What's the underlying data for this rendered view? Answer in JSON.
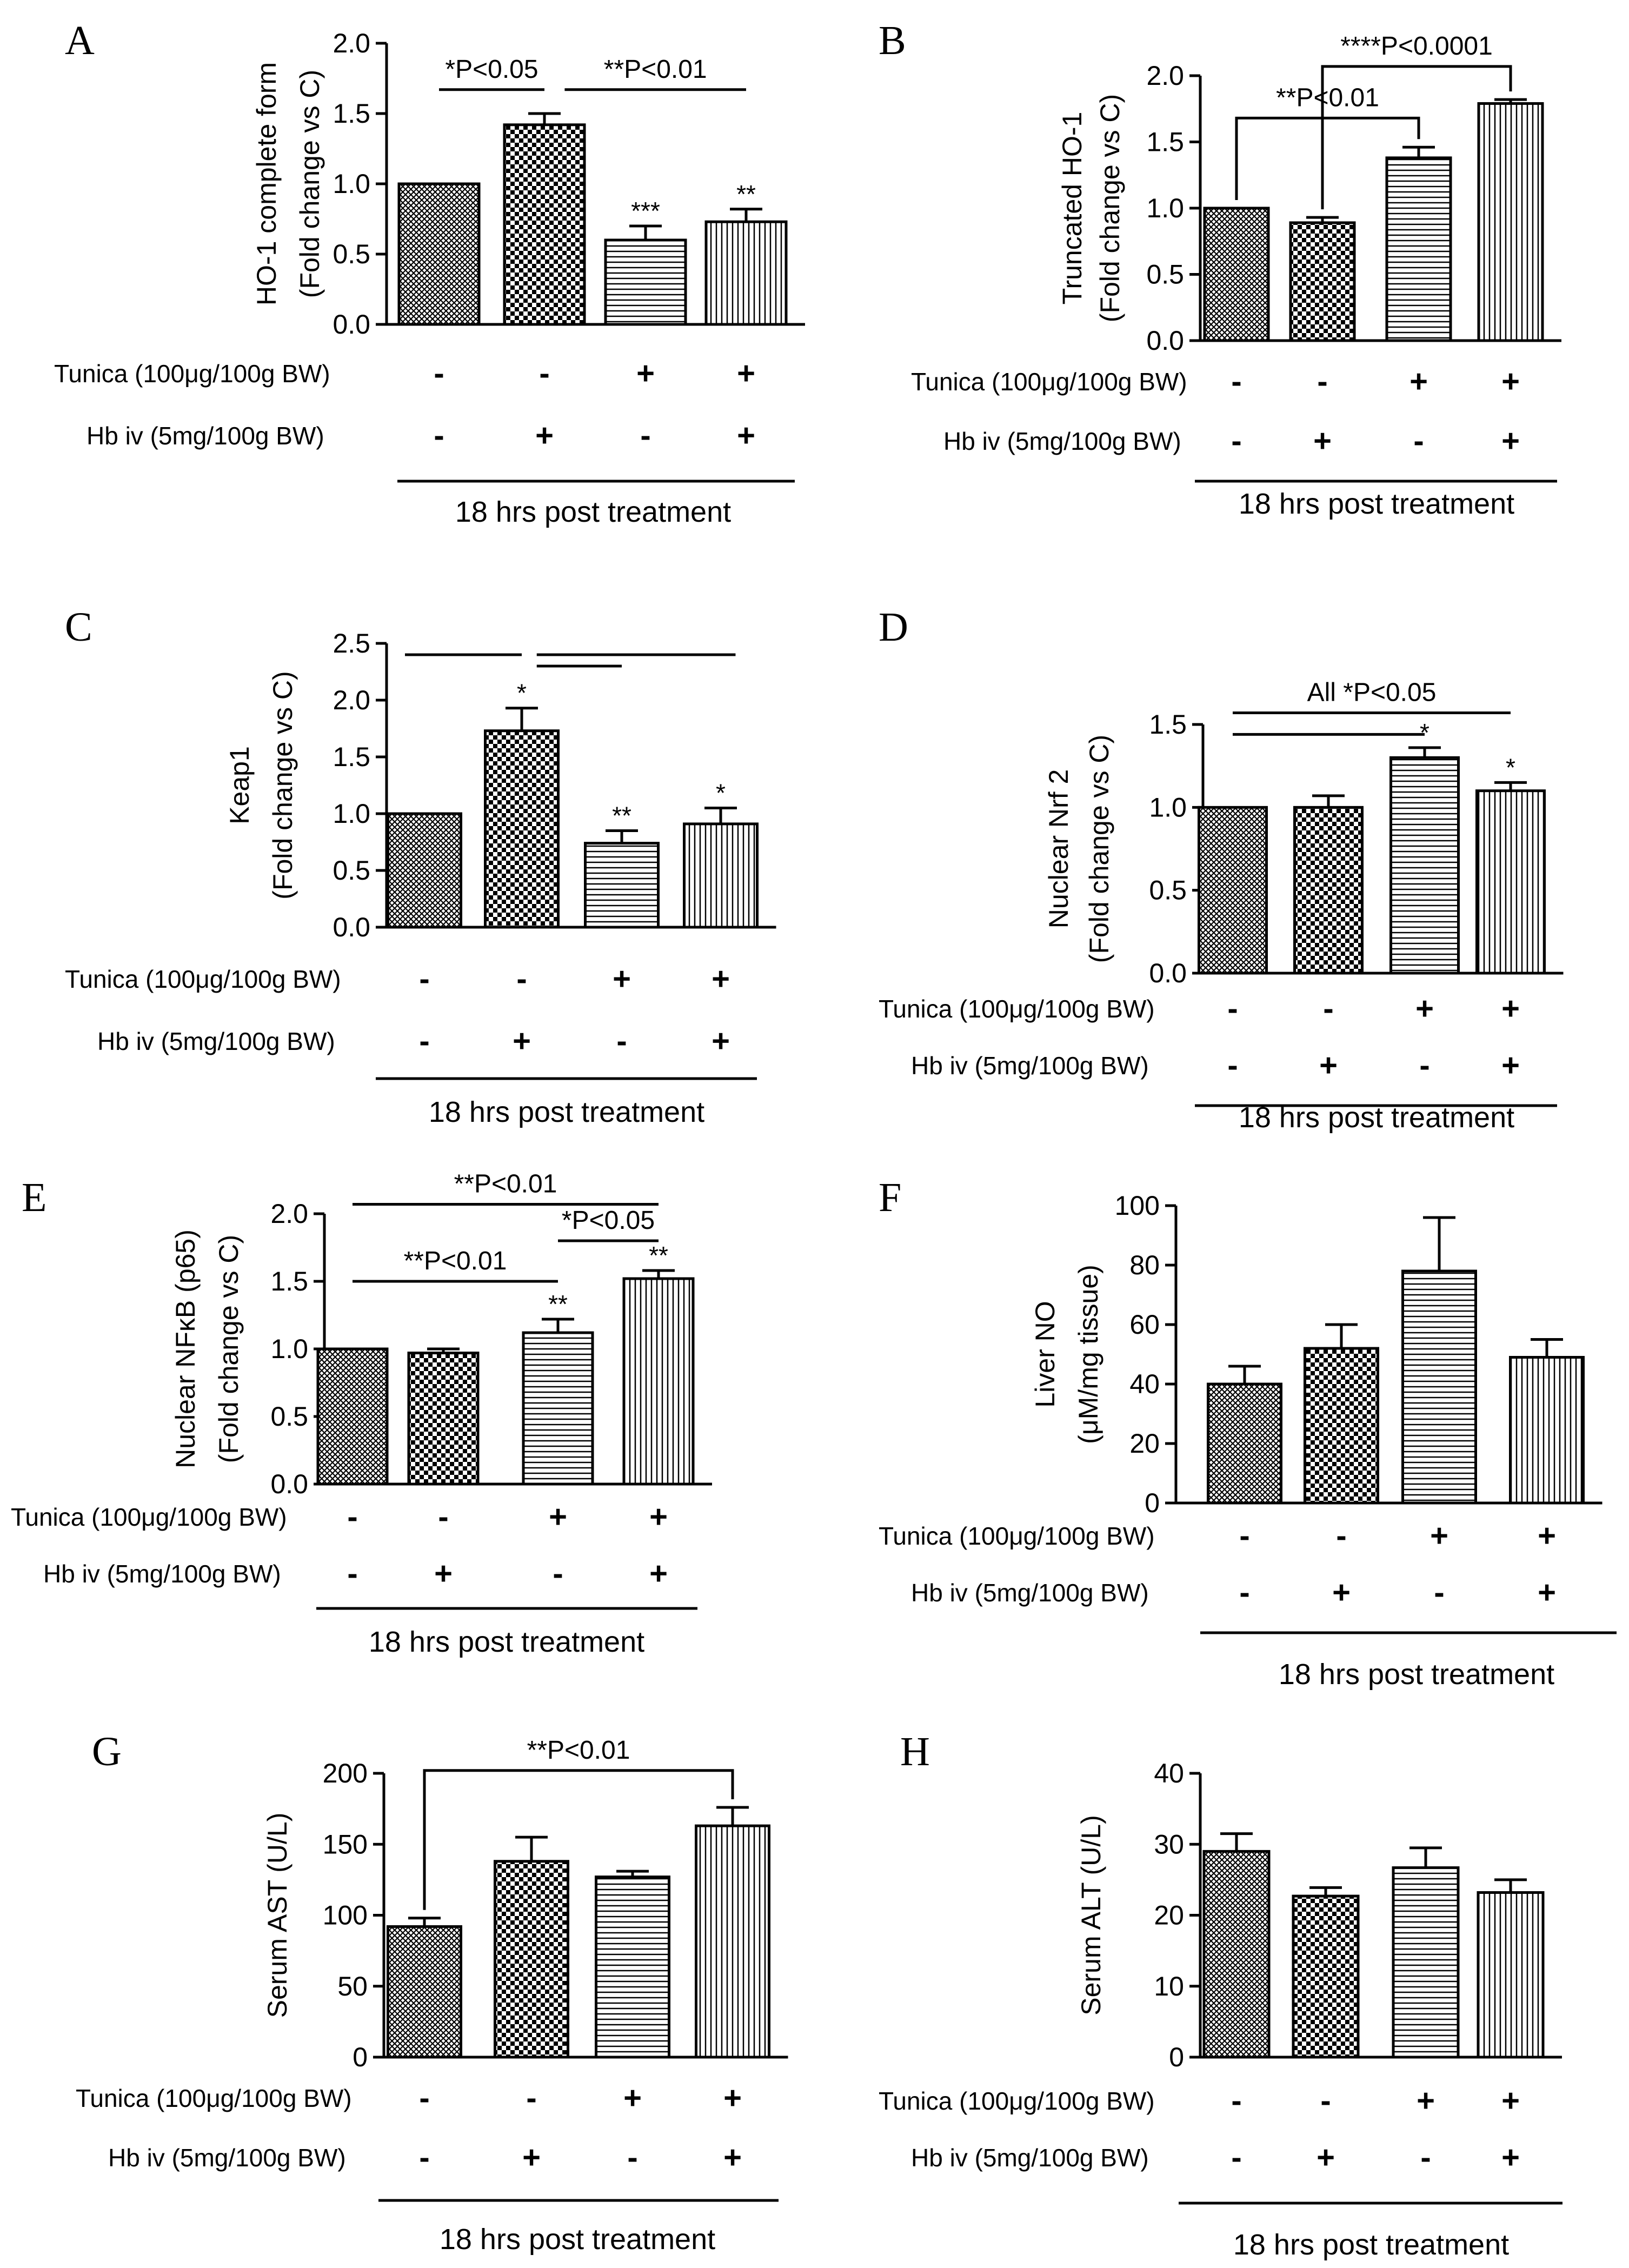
{
  "row_labels": {
    "tunica": "Tunica (100μg/100g BW)",
    "hb": "Hb iv (5mg/100g BW)"
  },
  "footer": "18 hrs post treatment",
  "colors": {
    "ink": "#000000",
    "background": "#ffffff"
  },
  "pattern_names": [
    "crosshatch-fine",
    "checkerboard",
    "horizontal-lines",
    "vertical-lines"
  ],
  "chart_data": [
    {
      "panel": "A",
      "type": "bar",
      "ylabel_lines": [
        "HO-1 complete form",
        "(Fold change vs C)"
      ],
      "ylim": [
        0,
        2.0
      ],
      "yticks": [
        0.0,
        0.5,
        1.0,
        1.5,
        2.0
      ],
      "tick_decimals": 1,
      "tunica": [
        "-",
        "-",
        "+",
        "+"
      ],
      "hb": [
        "-",
        "+",
        "-",
        "+"
      ],
      "values": [
        1.0,
        1.42,
        0.6,
        0.73
      ],
      "errors": [
        0.0,
        0.08,
        0.1,
        0.09
      ],
      "stars": [
        "",
        "",
        "***",
        "**"
      ],
      "annotations": [
        {
          "text": "*P<0.05",
          "lines": [
            {
              "type": "line",
              "from": 0,
              "to": 1,
              "y": 1.67
            }
          ]
        },
        {
          "text": "**P<0.01",
          "lines": [
            {
              "type": "line",
              "from": 1.2,
              "to": 3.0,
              "y": 1.67
            }
          ]
        }
      ]
    },
    {
      "panel": "B",
      "type": "bar",
      "ylabel_lines": [
        "Truncated HO-1",
        "(Fold change vs C)"
      ],
      "ylim": [
        0,
        2.0
      ],
      "yticks": [
        0.0,
        0.5,
        1.0,
        1.5,
        2.0
      ],
      "tick_decimals": 1,
      "tunica": [
        "-",
        "-",
        "+",
        "+"
      ],
      "hb": [
        "-",
        "+",
        "-",
        "+"
      ],
      "values": [
        1.0,
        0.89,
        1.38,
        1.79
      ],
      "errors": [
        0.0,
        0.04,
        0.08,
        0.03
      ],
      "stars": [
        "",
        "",
        "",
        ""
      ],
      "annotations": [
        {
          "text": "**P<0.01",
          "lines": [
            {
              "type": "bracket",
              "from": 0,
              "to": 2,
              "y": 1.68
            }
          ]
        },
        {
          "text": "****P<0.0001",
          "lines": [
            {
              "type": "bracket",
              "from": 1,
              "to": 3,
              "y": 2.07
            }
          ]
        }
      ]
    },
    {
      "panel": "C",
      "type": "bar",
      "ylabel_lines": [
        "Keap1",
        "(Fold change vs C)"
      ],
      "ylim": [
        0,
        2.5
      ],
      "yticks": [
        0.0,
        0.5,
        1.0,
        1.5,
        2.0,
        2.5
      ],
      "tick_decimals": 1,
      "tunica": [
        "-",
        "-",
        "+",
        "+"
      ],
      "hb": [
        "-",
        "+",
        "-",
        "+"
      ],
      "values": [
        1.0,
        1.73,
        0.74,
        0.91
      ],
      "errors": [
        0.0,
        0.2,
        0.11,
        0.14
      ],
      "stars": [
        "",
        "*",
        "**",
        "*"
      ],
      "annotations": [
        {
          "text": "",
          "lines": [
            {
              "type": "line",
              "from": -0.2,
              "to": 1.0,
              "y": 2.4
            },
            {
              "type": "line",
              "from": 1.15,
              "to": 3.15,
              "y": 2.4
            },
            {
              "type": "line",
              "from": 1.15,
              "to": 2.0,
              "y": 2.3
            }
          ]
        }
      ]
    },
    {
      "panel": "D",
      "type": "bar",
      "ylabel_lines": [
        "Nuclear Nrf 2",
        "(Fold change vs C)"
      ],
      "ylim": [
        0,
        1.5
      ],
      "yticks": [
        0.0,
        0.5,
        1.0,
        1.5
      ],
      "tick_decimals": 1,
      "tunica": [
        "-",
        "-",
        "+",
        "+"
      ],
      "hb": [
        "-",
        "+",
        "-",
        "+"
      ],
      "values": [
        1.0,
        1.0,
        1.3,
        1.1
      ],
      "errors": [
        0.0,
        0.07,
        0.06,
        0.05
      ],
      "stars": [
        "",
        "",
        "*",
        "*"
      ],
      "annotations": [
        {
          "text": "All *P<0.05",
          "lines": [
            {
              "type": "line",
              "from": 0,
              "to": 3,
              "y": 1.57
            },
            {
              "type": "line",
              "from": 0,
              "to": 2,
              "y": 1.44
            }
          ]
        }
      ]
    },
    {
      "panel": "E",
      "type": "bar",
      "ylabel_lines": [
        "Nuclear NFκB (p65)",
        "(Fold change vs C)"
      ],
      "ylim": [
        0,
        2.0
      ],
      "yticks": [
        0.0,
        0.5,
        1.0,
        1.5,
        2.0
      ],
      "tick_decimals": 1,
      "tunica": [
        "-",
        "-",
        "+",
        "+"
      ],
      "hb": [
        "-",
        "+",
        "-",
        "+"
      ],
      "values": [
        1.0,
        0.97,
        1.12,
        1.52
      ],
      "errors": [
        0.0,
        0.03,
        0.1,
        0.06
      ],
      "stars": [
        "",
        "",
        "**",
        "**"
      ],
      "annotations": [
        {
          "text": "**P<0.01",
          "lines": [
            {
              "type": "line",
              "from": 0,
              "to": 3,
              "y": 2.07
            }
          ]
        },
        {
          "text": "*P<0.05",
          "lines": [
            {
              "type": "line",
              "from": 2,
              "to": 3,
              "y": 1.8
            }
          ]
        },
        {
          "text": "**P<0.01",
          "lines": [
            {
              "type": "line",
              "from": 0,
              "to": 2,
              "y": 1.5
            }
          ]
        }
      ]
    },
    {
      "panel": "F",
      "type": "bar",
      "ylabel_lines": [
        "Liver NO",
        "(μM/mg tissue)"
      ],
      "ylim": [
        0,
        100
      ],
      "yticks": [
        0,
        20,
        40,
        60,
        80,
        100
      ],
      "tick_decimals": 0,
      "tunica": [
        "-",
        "-",
        "+",
        "+"
      ],
      "hb": [
        "-",
        "+",
        "-",
        "+"
      ],
      "values": [
        40,
        52,
        78,
        49
      ],
      "errors": [
        6,
        8,
        18,
        6
      ],
      "stars": [
        "",
        "",
        "",
        ""
      ],
      "annotations": []
    },
    {
      "panel": "G",
      "type": "bar",
      "ylabel_lines": [
        "Serum AST (U/L)"
      ],
      "ylim": [
        0,
        200
      ],
      "yticks": [
        0,
        50,
        100,
        150,
        200
      ],
      "tick_decimals": 0,
      "tunica": [
        "-",
        "-",
        "+",
        "+"
      ],
      "hb": [
        "-",
        "+",
        "-",
        "+"
      ],
      "values": [
        92,
        138,
        127,
        163
      ],
      "errors": [
        6,
        17,
        4,
        13
      ],
      "stars": [
        "",
        "",
        "",
        ""
      ],
      "annotations": [
        {
          "text": "**P<0.01",
          "lines": [
            {
              "type": "bracket",
              "from": 0,
              "to": 3,
              "y": 202
            }
          ]
        }
      ]
    },
    {
      "panel": "H",
      "type": "bar",
      "ylabel_lines": [
        "Serum ALT (U/L)"
      ],
      "ylim": [
        0,
        40
      ],
      "yticks": [
        0,
        10,
        20,
        30,
        40
      ],
      "tick_decimals": 0,
      "tunica": [
        "-",
        "-",
        "+",
        "+"
      ],
      "hb": [
        "-",
        "+",
        "-",
        "+"
      ],
      "values": [
        29,
        22.7,
        26.7,
        23.2
      ],
      "errors": [
        2.5,
        1.2,
        2.8,
        1.8
      ],
      "stars": [
        "",
        "",
        "",
        ""
      ],
      "annotations": []
    }
  ]
}
